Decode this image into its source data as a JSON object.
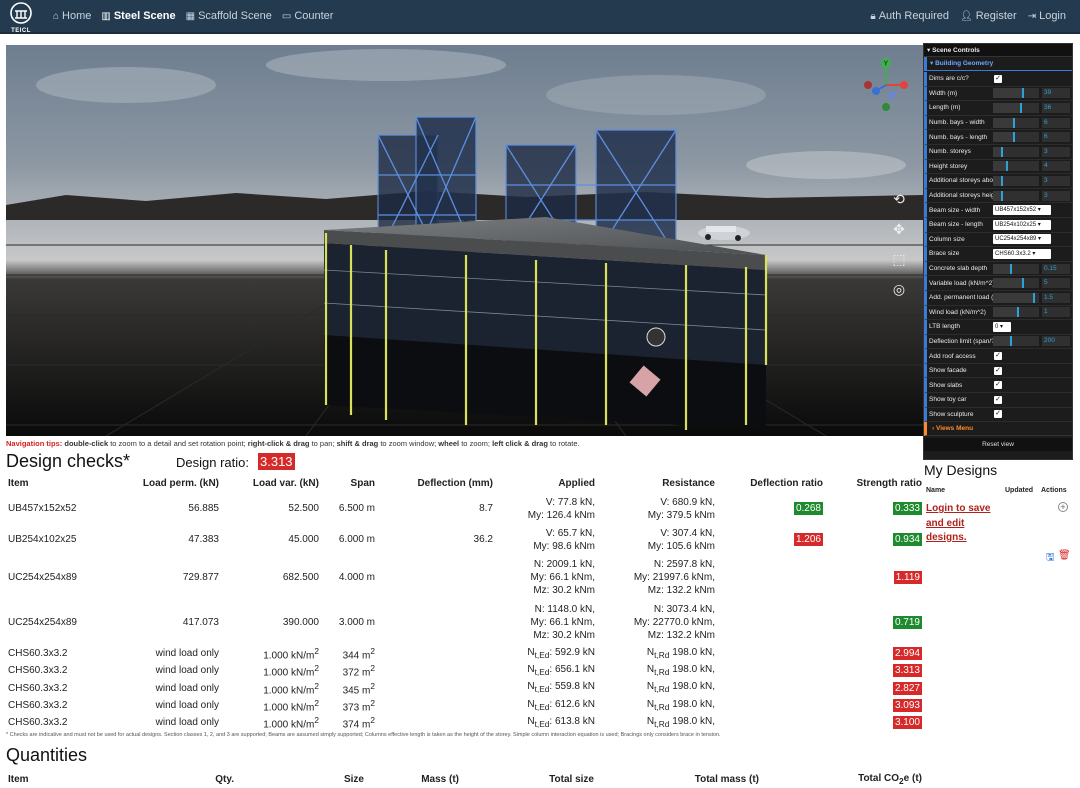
{
  "nav": {
    "logo_text": "TEICL",
    "items": [
      {
        "label": "Home",
        "icon": "home-icon",
        "glyph": "⌂"
      },
      {
        "label": "Steel Scene",
        "icon": "building-icon",
        "glyph": "▥"
      },
      {
        "label": "Scaffold Scene",
        "icon": "scaffold-icon",
        "glyph": "▦"
      },
      {
        "label": "Counter",
        "icon": "document-icon",
        "glyph": "▭"
      }
    ],
    "right": [
      {
        "label": "Auth Required",
        "icon": "lock-icon",
        "glyph": "🔒︎"
      },
      {
        "label": "Register",
        "icon": "user-icon",
        "glyph": "👤︎"
      },
      {
        "label": "Login",
        "icon": "login-icon",
        "glyph": "⇥"
      }
    ]
  },
  "viewport": {
    "tools": [
      {
        "name": "rotate-reset-icon",
        "glyph": "⟲"
      },
      {
        "name": "pan-icon",
        "glyph": "✥"
      },
      {
        "name": "zoom-window-icon",
        "glyph": "⬚"
      },
      {
        "name": "target-icon",
        "glyph": "◎"
      }
    ],
    "gizmo": {
      "y_label": "Y"
    }
  },
  "scene_controls": {
    "title": "Scene Controls",
    "folder": "Building Geometry",
    "rows": [
      {
        "label": "Dims are c/c?",
        "type": "check",
        "checked": true
      },
      {
        "label": "Width (m)",
        "type": "slider",
        "value": "39",
        "level": 0.65
      },
      {
        "label": "Length (m)",
        "type": "slider",
        "value": "36",
        "level": 0.6
      },
      {
        "label": "Numb. bays - width",
        "type": "slider",
        "value": "6",
        "level": 0.45
      },
      {
        "label": "Numb. bays - length",
        "type": "slider",
        "value": "6",
        "level": 0.45
      },
      {
        "label": "Numb. storeys",
        "type": "slider",
        "value": "3",
        "level": 0.2
      },
      {
        "label": "Height storey",
        "type": "slider",
        "value": "4",
        "level": 0.3
      },
      {
        "label": "Additional storeys above",
        "type": "slider",
        "value": "3",
        "level": 0.2
      },
      {
        "label": "Additional storeys height",
        "type": "slider",
        "value": "3",
        "level": 0.2
      },
      {
        "label": "Beam size - width",
        "type": "select",
        "value": "UB457x152x52"
      },
      {
        "label": "Beam size - length",
        "type": "select",
        "value": "UB254x102x25"
      },
      {
        "label": "Column size",
        "type": "select",
        "value": "UC254x254x89"
      },
      {
        "label": "Brace size",
        "type": "select",
        "value": "CHS60.3x3.2"
      },
      {
        "label": "Concrete slab depth",
        "type": "slider",
        "value": "0.15",
        "level": 0.4
      },
      {
        "label": "Variable load (kN/m^2)",
        "type": "slider",
        "value": "5",
        "level": 0.65
      },
      {
        "label": "Add. permanent load (kN/m^2)",
        "type": "slider",
        "value": "1.5",
        "level": 0.9
      },
      {
        "label": "Wind load (kN/m^2)",
        "type": "slider",
        "value": "1",
        "level": 0.55
      },
      {
        "label": "LTB length",
        "type": "select_small",
        "value": "0"
      },
      {
        "label": "Deflection limit (span/?)",
        "type": "slider",
        "value": "200",
        "level": 0.4
      },
      {
        "label": "Add roof access",
        "type": "check",
        "checked": true
      },
      {
        "label": "Show facade",
        "type": "check",
        "checked": true
      },
      {
        "label": "Show slabs",
        "type": "check",
        "checked": true
      },
      {
        "label": "Show toy car",
        "type": "check",
        "checked": true
      },
      {
        "label": "Show sculpture",
        "type": "check",
        "checked": true
      }
    ],
    "views_menu": "Views Menu",
    "reset": "Reset view"
  },
  "nav_tips": {
    "label": "Navigation tips:",
    "parts": [
      {
        "b": "double-click",
        "t": " to zoom to a detail and set rotation point; "
      },
      {
        "b": "right-click & drag",
        "t": " to pan; "
      },
      {
        "b": "shift & drag",
        "t": " to zoom window; "
      },
      {
        "b": "wheel",
        "t": " to zoom; "
      },
      {
        "b": "left click & drag",
        "t": " to rotate."
      }
    ]
  },
  "design_checks": {
    "title": "Design checks*",
    "ratio_label": "Design ratio:",
    "ratio_value": "3.313",
    "headers": [
      "Item",
      "Load perm. (kN)",
      "Load var. (kN)",
      "Span",
      "Deflection (mm)",
      "Applied",
      "Resistance",
      "Deflection ratio",
      "Strength ratio"
    ],
    "rows": [
      {
        "item": "UB457x152x52",
        "perm": "56.885",
        "var": "52.500",
        "span": "6.500 m",
        "defl": "8.7",
        "applied": [
          "V: 77.8 kN,",
          "My: 126.4 kNm"
        ],
        "resistance": [
          "V: 680.9 kN,",
          "My: 379.5 kNm"
        ],
        "defl_ratio": "0.268",
        "defl_ok": true,
        "str_ratio": "0.333",
        "str_ok": true
      },
      {
        "item": "UB254x102x25",
        "perm": "47.383",
        "var": "45.000",
        "span": "6.000 m",
        "defl": "36.2",
        "applied": [
          "V: 65.7 kN,",
          "My: 98.6 kNm"
        ],
        "resistance": [
          "V: 307.4 kN,",
          "My: 105.6 kNm"
        ],
        "defl_ratio": "1.206",
        "defl_ok": false,
        "str_ratio": "0.934",
        "str_ok": true
      },
      {
        "item": "UC254x254x89",
        "perm": "729.877",
        "var": "682.500",
        "span": "4.000 m",
        "defl": "",
        "applied": [
          "N: 2009.1 kN,",
          "My: 66.1 kNm,",
          "Mz: 30.2 kNm"
        ],
        "resistance": [
          "N: 2597.8 kN,",
          "My: 21997.6 kNm,",
          "Mz: 132.2 kNm"
        ],
        "defl_ratio": "",
        "defl_ok": true,
        "str_ratio": "1.119",
        "str_ok": false
      },
      {
        "item": "UC254x254x89",
        "perm": "417.073",
        "var": "390.000",
        "span": "3.000 m",
        "defl": "",
        "applied": [
          "N: 1148.0 kN,",
          "My: 66.1 kNm,",
          "Mz: 30.2 kNm"
        ],
        "resistance": [
          "N: 3073.4 kN,",
          "My: 22770.0 kNm,",
          "Mz: 132.2 kNm"
        ],
        "defl_ratio": "",
        "defl_ok": true,
        "str_ratio": "0.719",
        "str_ok": true
      }
    ],
    "brace_rows": [
      {
        "item": "CHS60.3x3.2",
        "perm": "wind load only",
        "var": "1.000 kN/m",
        "span": "344 m",
        "applied": "592.9 kN",
        "resistance": "198.0 kN,",
        "str_ratio": "2.994"
      },
      {
        "item": "CHS60.3x3.2",
        "perm": "wind load only",
        "var": "1.000 kN/m",
        "span": "372 m",
        "applied": "656.1 kN",
        "resistance": "198.0 kN,",
        "str_ratio": "3.313"
      },
      {
        "item": "CHS60.3x3.2",
        "perm": "wind load only",
        "var": "1.000 kN/m",
        "span": "345 m",
        "applied": "559.8 kN",
        "resistance": "198.0 kN,",
        "str_ratio": "2.827"
      },
      {
        "item": "CHS60.3x3.2",
        "perm": "wind load only",
        "var": "1.000 kN/m",
        "span": "373 m",
        "applied": "612.6 kN",
        "resistance": "198.0 kN,",
        "str_ratio": "3.093"
      },
      {
        "item": "CHS60.3x3.2",
        "perm": "wind load only",
        "var": "1.000 kN/m",
        "span": "374 m",
        "applied": "613.8 kN",
        "resistance": "198.0 kN,",
        "str_ratio": "3.100"
      }
    ],
    "note": "* Checks are indicative and must not be used for actual designs. Section classes 1, 2, and 3 are supported; Beams are assumed simply supported; Columns effective length is taken as the height of the storey. Simple column interaction equation is used; Bracings only considers brace in tension."
  },
  "quantities": {
    "title": "Quantities",
    "headers": [
      "Item",
      "Qty.",
      "Size",
      "Mass (t)",
      "Total size",
      "Total mass (t)",
      "Total CO2e (t)"
    ]
  },
  "my_designs": {
    "title": "My Designs",
    "headers": [
      "Name",
      "Updated",
      "Actions"
    ],
    "login_text": "Login to save and edit designs."
  },
  "colors": {
    "navbar": "#243b4f",
    "ok": "#1e8a2e",
    "fail": "#d62a2a",
    "accent": "#3a7bd5"
  }
}
